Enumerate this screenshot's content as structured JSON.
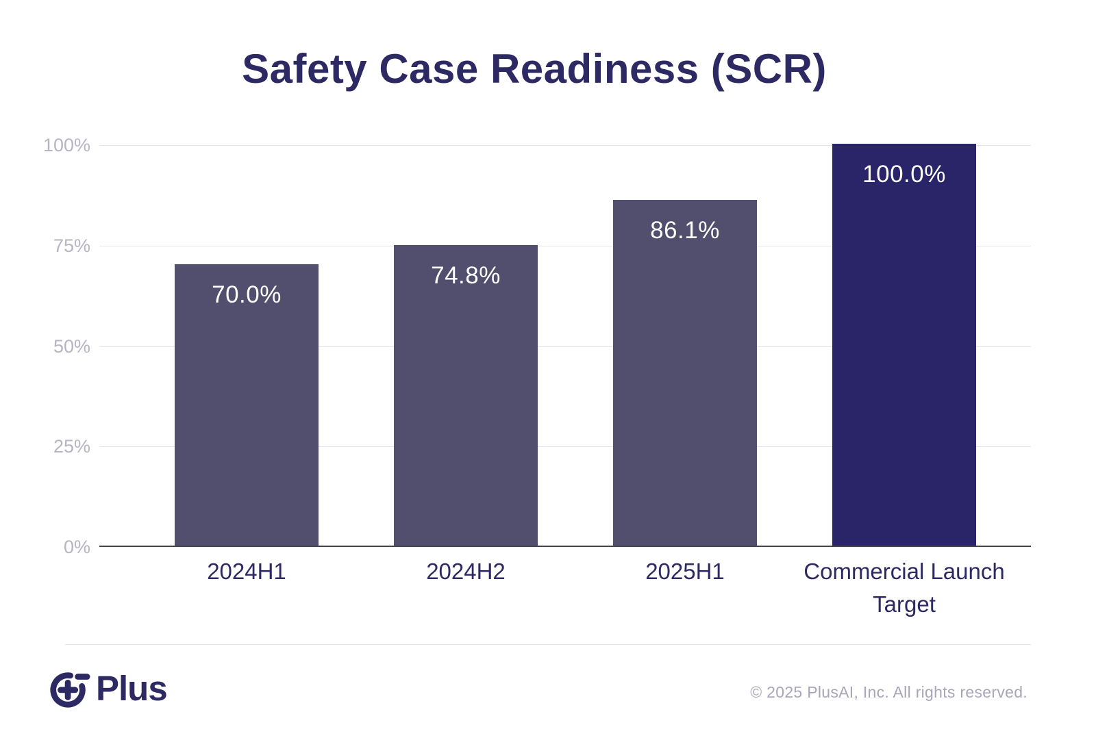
{
  "title": "Safety Case Readiness (SCR)",
  "chart_data": {
    "type": "bar",
    "title": "Safety Case Readiness (SCR)",
    "categories": [
      "2024H1",
      "2024H2",
      "2025H1",
      "Commercial Launch Target"
    ],
    "values": [
      70.0,
      74.8,
      86.1,
      100.0
    ],
    "value_labels": [
      "70.0%",
      "74.8%",
      "86.1%",
      "100.0%"
    ],
    "xlabel": "",
    "ylabel": "",
    "ylim": [
      0,
      100
    ],
    "ytick_values": [
      0,
      25,
      50,
      75,
      100
    ],
    "ytick_labels": [
      "0%",
      "25%",
      "50%",
      "75%",
      "100%"
    ],
    "grid": true,
    "legend": false,
    "bar_colors": [
      "#514e6e",
      "#514e6e",
      "#514e6e",
      "#2a2468"
    ]
  },
  "footer": {
    "logo_text": "Plus",
    "copyright": "© 2025 PlusAI, Inc. All rights reserved."
  },
  "colors": {
    "title_text": "#2d2963",
    "bar_default": "#514e6e",
    "bar_highlight": "#2a2468",
    "value_label_text": "#ffffff",
    "gridline": "#e5e4ec",
    "axis_line": "#45444e",
    "ytick_text": "#b6b5c3",
    "xtick_text": "#2d2963",
    "logo": "#2d2a63",
    "copyright_text": "#a7a6b8"
  }
}
